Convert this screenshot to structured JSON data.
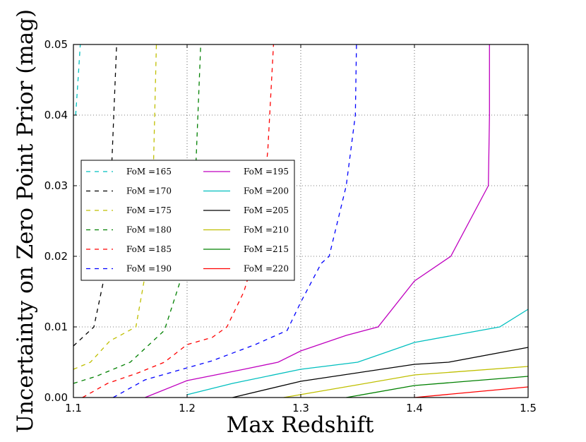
{
  "chart_data": {
    "type": "line",
    "title": "",
    "xlabel": "Max Redshift",
    "ylabel": "Uncertainty on Zero Point Prior (mag)",
    "xlim": [
      1.1,
      1.5
    ],
    "ylim": [
      0.0,
      0.05
    ],
    "xticks": [
      1.1,
      1.2,
      1.3,
      1.4,
      1.5
    ],
    "xtick_labels": [
      "1.1",
      "1.2",
      "1.3",
      "1.4",
      "1.5"
    ],
    "yticks": [
      0.0,
      0.01,
      0.02,
      0.03,
      0.04,
      0.05
    ],
    "ytick_labels": [
      "0.00",
      "0.01",
      "0.02",
      "0.03",
      "0.04",
      "0.05"
    ],
    "grid": true,
    "legend_location": "center-left",
    "series": [
      {
        "name": "FoM =165",
        "color": "#00bfbf",
        "style": "dashed",
        "x": [
          1.102,
          1.1045,
          1.106
        ],
        "y": [
          0.04,
          0.046,
          0.05
        ]
      },
      {
        "name": "FoM =170",
        "color": "#000000",
        "style": "dashed",
        "x": [
          1.1,
          1.118,
          1.131,
          1.133,
          1.138
        ],
        "y": [
          0.0073,
          0.01,
          0.02,
          0.03,
          0.05
        ]
      },
      {
        "name": "FoM =175",
        "color": "#bfbf00",
        "style": "dashed",
        "x": [
          1.1,
          1.115,
          1.132,
          1.155,
          1.166,
          1.17,
          1.173
        ],
        "y": [
          0.004,
          0.005,
          0.008,
          0.01,
          0.02,
          0.03,
          0.05
        ]
      },
      {
        "name": "FoM =180",
        "color": "#008000",
        "style": "dashed",
        "x": [
          1.1,
          1.12,
          1.15,
          1.18,
          1.197,
          1.207,
          1.212
        ],
        "y": [
          0.002,
          0.003,
          0.005,
          0.0095,
          0.018,
          0.03,
          0.05
        ]
      },
      {
        "name": "FoM =185",
        "color": "#ff0000",
        "style": "dashed",
        "x": [
          1.108,
          1.13,
          1.157,
          1.18,
          1.2,
          1.222,
          1.235,
          1.25,
          1.263,
          1.271,
          1.276
        ],
        "y": [
          0.0,
          0.002,
          0.0035,
          0.005,
          0.0075,
          0.0085,
          0.01,
          0.015,
          0.022,
          0.035,
          0.05
        ]
      },
      {
        "name": "FoM =190",
        "color": "#0000ff",
        "style": "dashed",
        "x": [
          1.135,
          1.163,
          1.2,
          1.222,
          1.26,
          1.288,
          1.3,
          1.318,
          1.325,
          1.34,
          1.348,
          1.349
        ],
        "y": [
          0.0,
          0.0025,
          0.0042,
          0.0052,
          0.0075,
          0.0095,
          0.0135,
          0.019,
          0.02,
          0.03,
          0.04,
          0.05
        ]
      },
      {
        "name": "FoM =195",
        "color": "#bf00bf",
        "style": "solid",
        "x": [
          1.163,
          1.2,
          1.25,
          1.28,
          1.3,
          1.34,
          1.368,
          1.4,
          1.432,
          1.465,
          1.466,
          1.466
        ],
        "y": [
          0.0,
          0.0024,
          0.004,
          0.005,
          0.0066,
          0.0088,
          0.01,
          0.0165,
          0.02,
          0.03,
          0.04,
          0.05
        ]
      },
      {
        "name": "FoM =200",
        "color": "#00bfbf",
        "style": "solid",
        "x": [
          1.2,
          1.24,
          1.3,
          1.35,
          1.4,
          1.475,
          1.5
        ],
        "y": [
          0.0004,
          0.002,
          0.004,
          0.005,
          0.0078,
          0.01,
          0.0125
        ]
      },
      {
        "name": "FoM =205",
        "color": "#000000",
        "style": "solid",
        "x": [
          1.24,
          1.3,
          1.4,
          1.43,
          1.5
        ],
        "y": [
          0.0,
          0.0023,
          0.0047,
          0.005,
          0.0071
        ]
      },
      {
        "name": "FoM =210",
        "color": "#bfbf00",
        "style": "solid",
        "x": [
          1.285,
          1.35,
          1.4,
          1.5
        ],
        "y": [
          0.0,
          0.0018,
          0.0032,
          0.0044
        ]
      },
      {
        "name": "FoM =215",
        "color": "#008000",
        "style": "solid",
        "x": [
          1.34,
          1.4,
          1.5
        ],
        "y": [
          0.0,
          0.0017,
          0.003
        ]
      },
      {
        "name": "FoM =220",
        "color": "#ff0000",
        "style": "solid",
        "x": [
          1.4,
          1.5
        ],
        "y": [
          0.0,
          0.0015
        ]
      }
    ]
  }
}
